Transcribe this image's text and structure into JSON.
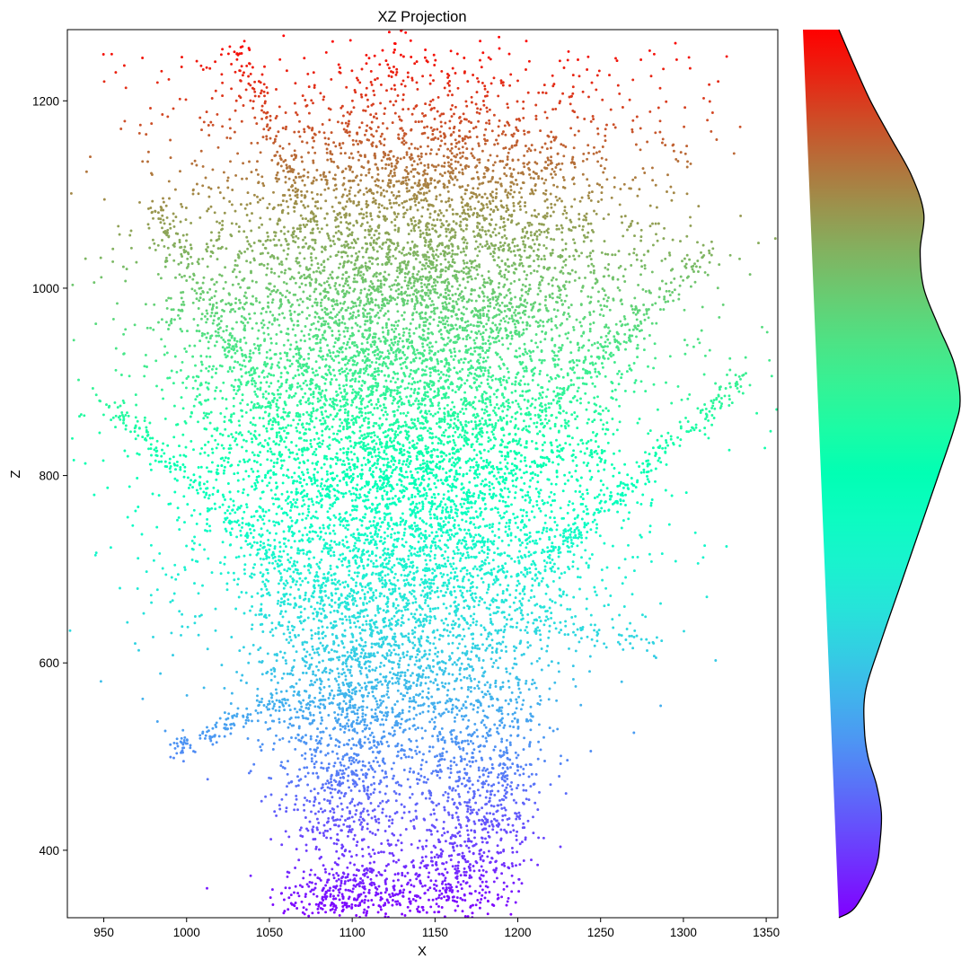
{
  "chart_data": [
    {
      "type": "scatter",
      "title": "XZ Projection",
      "xlabel": "X",
      "ylabel": "Z",
      "xlim": [
        928,
        1357
      ],
      "ylim": [
        328,
        1276
      ],
      "xticks": [
        950,
        1000,
        1050,
        1100,
        1150,
        1200,
        1250,
        1300,
        1350
      ],
      "yticks": [
        400,
        600,
        800,
        1000,
        1200
      ],
      "grid": false,
      "colormap": "rainbow",
      "color_by": "Z",
      "point_color_range": [
        330,
        1270
      ],
      "approx_point_count": 14000,
      "density_profile": [
        {
          "x": 1085,
          "y": 350,
          "weight": 1.0,
          "wx": 18,
          "wy": 20
        },
        {
          "x": 1105,
          "y": 350,
          "weight": 1.2,
          "wx": 14,
          "wy": 20
        },
        {
          "x": 1140,
          "y": 360,
          "weight": 0.8,
          "wx": 20,
          "wy": 25
        },
        {
          "x": 1170,
          "y": 390,
          "weight": 1.0,
          "wx": 14,
          "wy": 40
        },
        {
          "x": 1095,
          "y": 470,
          "weight": 1.1,
          "wx": 18,
          "wy": 60
        },
        {
          "x": 1180,
          "y": 480,
          "weight": 0.9,
          "wx": 20,
          "wy": 60
        },
        {
          "x": 1120,
          "y": 580,
          "weight": 1.0,
          "wx": 40,
          "wy": 60
        },
        {
          "x": 1130,
          "y": 700,
          "weight": 1.2,
          "wx": 60,
          "wy": 70
        },
        {
          "x": 1130,
          "y": 860,
          "weight": 1.5,
          "wx": 70,
          "wy": 90
        },
        {
          "x": 1140,
          "y": 1000,
          "weight": 1.1,
          "wx": 70,
          "wy": 70
        },
        {
          "x": 1150,
          "y": 1120,
          "weight": 1.0,
          "wx": 60,
          "wy": 60
        },
        {
          "x": 1125,
          "y": 1240,
          "weight": 0.4,
          "wx": 10,
          "wy": 20
        }
      ],
      "branches": [
        {
          "from": [
            1060,
            700
          ],
          "to": [
            950,
            880
          ],
          "count": 160
        },
        {
          "from": [
            1060,
            840
          ],
          "to": [
            980,
            1090
          ],
          "count": 160
        },
        {
          "from": [
            1060,
            560
          ],
          "to": [
            990,
            505
          ],
          "count": 120
        },
        {
          "from": [
            1200,
            680
          ],
          "to": [
            1338,
            908
          ],
          "count": 220
        },
        {
          "from": [
            1200,
            640
          ],
          "to": [
            1285,
            625
          ],
          "count": 60
        },
        {
          "from": [
            1210,
            860
          ],
          "to": [
            1315,
            1040
          ],
          "count": 160
        },
        {
          "from": [
            1080,
            1050
          ],
          "to": [
            1030,
            1260
          ],
          "count": 120
        }
      ]
    },
    {
      "type": "area",
      "series_name": "Z density",
      "orientation": "vertical",
      "colormap": "rainbow",
      "points": [
        {
          "z": 328,
          "d": 0.0
        },
        {
          "z": 340,
          "d": 0.14
        },
        {
          "z": 380,
          "d": 0.3
        },
        {
          "z": 410,
          "d": 0.34
        },
        {
          "z": 440,
          "d": 0.35
        },
        {
          "z": 470,
          "d": 0.31
        },
        {
          "z": 500,
          "d": 0.24
        },
        {
          "z": 530,
          "d": 0.21
        },
        {
          "z": 570,
          "d": 0.22
        },
        {
          "z": 620,
          "d": 0.34
        },
        {
          "z": 680,
          "d": 0.5
        },
        {
          "z": 740,
          "d": 0.66
        },
        {
          "z": 800,
          "d": 0.82
        },
        {
          "z": 850,
          "d": 0.95
        },
        {
          "z": 880,
          "d": 1.0
        },
        {
          "z": 920,
          "d": 0.95
        },
        {
          "z": 960,
          "d": 0.82
        },
        {
          "z": 1000,
          "d": 0.7
        },
        {
          "z": 1040,
          "d": 0.67
        },
        {
          "z": 1080,
          "d": 0.7
        },
        {
          "z": 1120,
          "d": 0.6
        },
        {
          "z": 1160,
          "d": 0.43
        },
        {
          "z": 1200,
          "d": 0.26
        },
        {
          "z": 1240,
          "d": 0.12
        },
        {
          "z": 1276,
          "d": 0.0
        }
      ]
    }
  ]
}
